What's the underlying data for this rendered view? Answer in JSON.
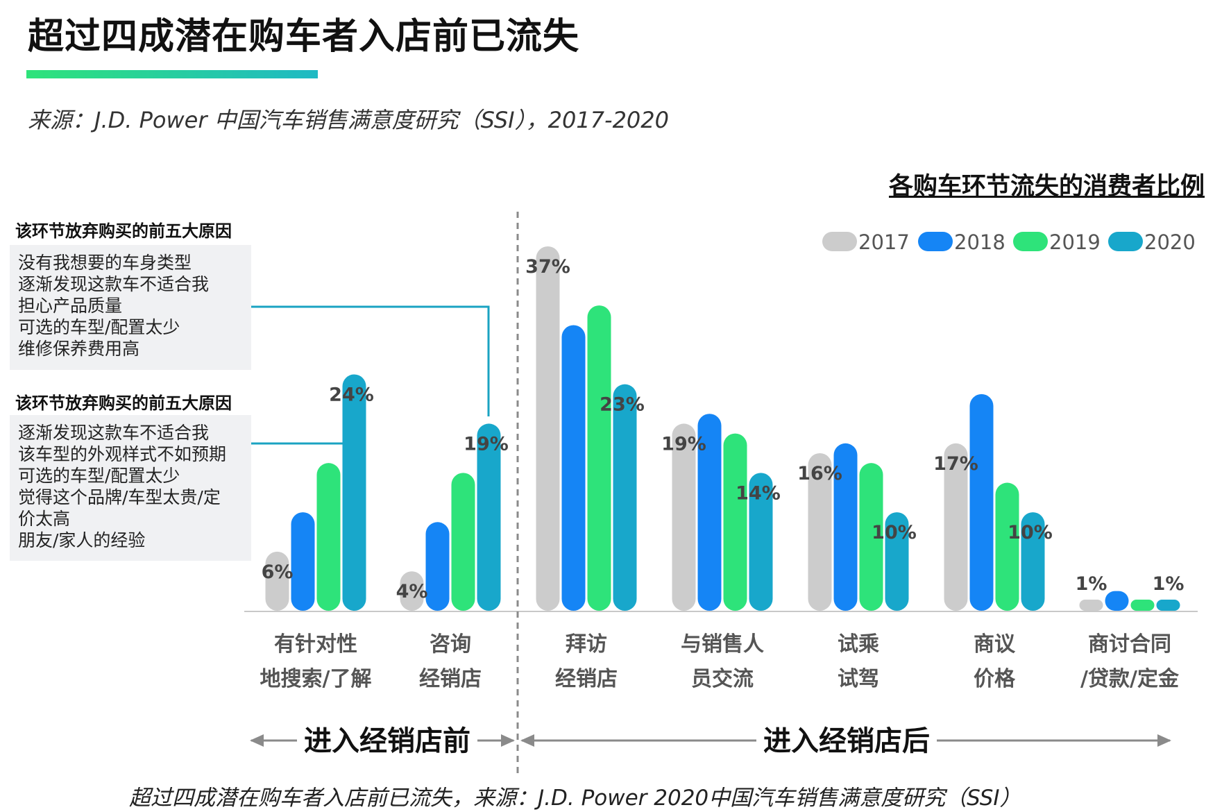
{
  "page": {
    "title": "超过四成潜在购车者入店前已流失",
    "source": "来源：J.D. Power 中国汽车销售满意度研究（SSI），2017-2020",
    "footer": "超过四成潜在购车者入店前已流失，来源：J.D. Power 2020中国汽车销售满意度研究（SSI）",
    "before_store_label": "进入经销店前",
    "after_store_label": "进入经销店后",
    "reasons_blocks": [
      {
        "title": "该环节放弃购买的前五大原因",
        "items": [
          "没有我想要的车身类型",
          "逐渐发现这款车不适合我",
          "担心产品质量",
          "可选的车型/配置太少",
          "维修保养费用高"
        ]
      },
      {
        "title": "该环节放弃购买的前五大原因",
        "items": [
          "逐渐发现这款车不适合我",
          "该车型的外观样式不如预期",
          "可选的车型/配置太少",
          "觉得这个品牌/车型太贵/定",
          "价太高",
          "朋友/家人的经验"
        ]
      }
    ],
    "colors": {
      "accent_green": "#2ee37a",
      "accent_teal": "#1fb9c4",
      "line_teal": "#1aa3c2"
    }
  },
  "chart_data": {
    "type": "bar",
    "title": "各购车环节流失的消费者比例",
    "categories": [
      [
        "有针对性",
        "地搜索/了解"
      ],
      [
        "咨询",
        "经销店"
      ],
      [
        "拜访",
        "经销店"
      ],
      [
        "与销售人",
        "员交流"
      ],
      [
        "试乘",
        "试驾"
      ],
      [
        "商议",
        "价格"
      ],
      [
        "商讨合同",
        "/贷款/定金"
      ]
    ],
    "series": [
      {
        "name": "2017",
        "color": "#cccccc",
        "values": [
          6,
          4,
          37,
          19,
          16,
          17,
          1
        ]
      },
      {
        "name": "2018",
        "color": "#1585f5",
        "values": [
          10,
          9,
          29,
          20,
          17,
          22,
          2
        ]
      },
      {
        "name": "2019",
        "color": "#2ee37a",
        "values": [
          15,
          14,
          31,
          18,
          15,
          13,
          1
        ]
      },
      {
        "name": "2020",
        "color": "#18a7cb",
        "values": [
          24,
          19,
          23,
          14,
          10,
          10,
          1
        ]
      }
    ],
    "data_labels": [
      {
        "category": 0,
        "series": 0,
        "text": "6%"
      },
      {
        "category": 0,
        "series": 3,
        "text": "24%"
      },
      {
        "category": 1,
        "series": 0,
        "text": "4%"
      },
      {
        "category": 1,
        "series": 3,
        "text": "19%"
      },
      {
        "category": 2,
        "series": 0,
        "text": "37%"
      },
      {
        "category": 2,
        "series": 3,
        "text": "23%"
      },
      {
        "category": 3,
        "series": 0,
        "text": "19%"
      },
      {
        "category": 3,
        "series": 3,
        "text": "14%"
      },
      {
        "category": 4,
        "series": 0,
        "text": "16%"
      },
      {
        "category": 4,
        "series": 3,
        "text": "10%"
      },
      {
        "category": 5,
        "series": 0,
        "text": "17%"
      },
      {
        "category": 5,
        "series": 3,
        "text": "10%"
      },
      {
        "category": 6,
        "series": 0,
        "text": "1%"
      },
      {
        "category": 6,
        "series": 3,
        "text": "1%"
      }
    ],
    "ylim": [
      0,
      40
    ],
    "legend_position": "top-right",
    "grid": false
  }
}
